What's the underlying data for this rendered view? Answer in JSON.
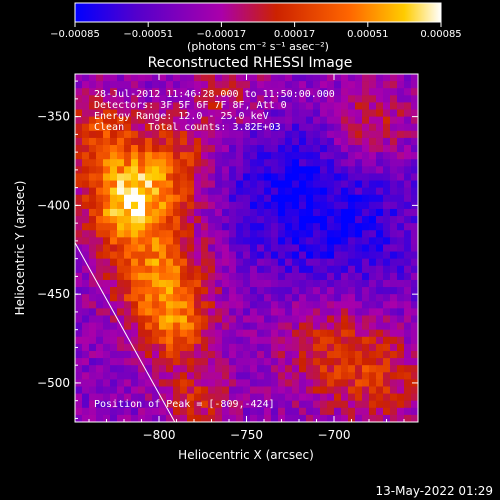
{
  "chart_data": {
    "type": "heatmap",
    "title": "Reconstructed RHESSI Image",
    "xlabel": "Heliocentric X (arcsec)",
    "ylabel": "Heliocentric Y (arcsec)",
    "xlim": [
      -848,
      -652
    ],
    "ylim": [
      -522,
      -326
    ],
    "xticks": [
      -800,
      -750,
      -700
    ],
    "yticks": [
      -350,
      -400,
      -450,
      -500
    ],
    "xtick_labels": [
      "−800",
      "−750",
      "−700"
    ],
    "ytick_labels": [
      "−350",
      "−400",
      "−450",
      "−500"
    ],
    "colorbar": {
      "range": [
        -0.00085,
        0.00085
      ],
      "tick_labels": [
        "−0.00085",
        "−0.00051",
        "−0.00017",
        "0.00017",
        "0.00051",
        "0.00085"
      ],
      "unit_label": "(photons cm⁻² s⁻¹ asec⁻²)",
      "colors": [
        "#0000ff",
        "#5500cc",
        "#aa00aa",
        "#cc2200",
        "#ff6600",
        "#ffcc00",
        "#ffffff"
      ]
    },
    "annotations": [
      "28-Jul-2012 11:46:28.000 to 11:50:00.000",
      "Detectors: 3F 5F 6F 7F 8F, Att 0",
      "Energy Range: 12.0 - 25.0 keV",
      "Clean    Total counts: 3.82E+03"
    ],
    "peak_label": "Position of Peak = [-809,-424]",
    "limb_line": {
      "x": [
        -848,
        -791
      ],
      "y": [
        -421,
        -522
      ]
    },
    "footer": "13-May-2022 01:29"
  }
}
